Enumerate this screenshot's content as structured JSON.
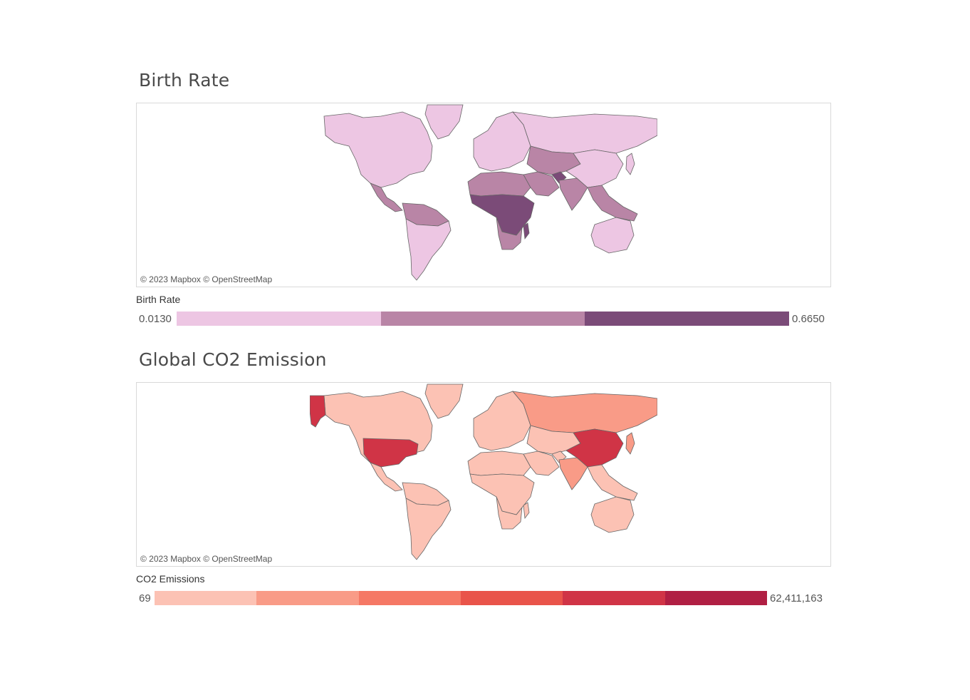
{
  "maps": [
    {
      "title": "Birth Rate",
      "attribution": "© 2023 Mapbox © OpenStreetMap",
      "legend": {
        "label": "Birth Rate",
        "min": "0.0130",
        "max": "0.6650",
        "colors": [
          "#edc6e3",
          "#b985a6",
          "#7b4b78"
        ]
      },
      "region_levels": {
        "north_america": 0,
        "greenland": 0,
        "central_america": 1,
        "south_america": 0,
        "south_america_north": 1,
        "europe": 0,
        "russia": 0,
        "north_africa": 1,
        "sub_saharan_africa": 2,
        "southern_africa": 1,
        "middle_east": 1,
        "central_asia": 1,
        "south_asia": 1,
        "afghanistan": 2,
        "china": 0,
        "southeast_asia": 1,
        "australia": 0,
        "japan": 0,
        "madagascar": 2
      }
    },
    {
      "title": "Global CO2 Emission",
      "attribution": "© 2023 Mapbox © OpenStreetMap",
      "legend": {
        "label": "CO2 Emissions",
        "min": "69",
        "max": "62,411,163",
        "colors": [
          "#fcc2b4",
          "#f99b87",
          "#f57865",
          "#e9544a",
          "#d03446",
          "#b01f43"
        ]
      },
      "region_levels": {
        "north_america": 0,
        "greenland": 0,
        "central_america": 0,
        "south_america": 0,
        "south_america_north": 0,
        "europe": 0,
        "russia": 1,
        "north_africa": 0,
        "sub_saharan_africa": 0,
        "southern_africa": 0,
        "middle_east": 0,
        "central_asia": 0,
        "south_asia": 1,
        "afghanistan": 0,
        "china": 4,
        "southeast_asia": 0,
        "australia": 0,
        "japan": 1,
        "madagascar": 0,
        "usa": 4,
        "alaska": 4
      }
    }
  ]
}
